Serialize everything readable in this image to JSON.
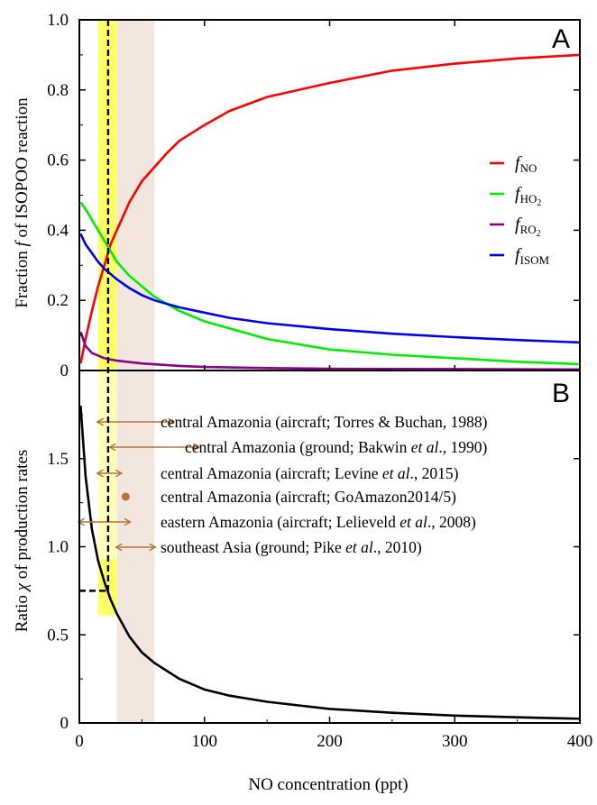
{
  "chart_data": [
    {
      "panel": "A",
      "type": "line",
      "ylabel": "Fraction f of ISOPOO reaction",
      "ylim": [
        0,
        1.0
      ],
      "xlim": [
        0,
        400
      ],
      "y_ticks": [
        "0",
        "0.2",
        "0.4",
        "0.6",
        "0.8",
        "1.0"
      ],
      "legend_position": "right",
      "series": [
        {
          "name": "NO",
          "color": "#ff0000",
          "x": [
            1,
            5,
            10,
            15,
            20,
            25,
            30,
            40,
            50,
            60,
            70,
            80,
            100,
            120,
            150,
            200,
            250,
            300,
            350,
            400
          ],
          "y": [
            0.02,
            0.09,
            0.17,
            0.24,
            0.3,
            0.36,
            0.4,
            0.48,
            0.54,
            0.58,
            0.62,
            0.655,
            0.7,
            0.74,
            0.78,
            0.82,
            0.855,
            0.875,
            0.89,
            0.9
          ]
        },
        {
          "name": "HO2",
          "color": "#00ee00",
          "x": [
            1,
            5,
            10,
            15,
            20,
            25,
            30,
            40,
            50,
            60,
            70,
            80,
            100,
            120,
            150,
            200,
            250,
            300,
            350,
            400
          ],
          "y": [
            0.48,
            0.46,
            0.43,
            0.4,
            0.37,
            0.34,
            0.31,
            0.27,
            0.24,
            0.21,
            0.19,
            0.17,
            0.14,
            0.12,
            0.09,
            0.06,
            0.045,
            0.035,
            0.025,
            0.018
          ]
        },
        {
          "name": "RO2",
          "color": "#8b008b",
          "x": [
            1,
            5,
            10,
            20,
            30,
            50,
            80,
            100,
            150,
            200,
            300,
            400
          ],
          "y": [
            0.11,
            0.07,
            0.05,
            0.035,
            0.028,
            0.02,
            0.013,
            0.01,
            0.007,
            0.005,
            0.004,
            0.003
          ]
        },
        {
          "name": "ISOM",
          "color": "#0000ee",
          "x": [
            1,
            5,
            10,
            15,
            20,
            25,
            30,
            40,
            50,
            60,
            80,
            100,
            120,
            150,
            200,
            250,
            300,
            350,
            400
          ],
          "y": [
            0.39,
            0.36,
            0.335,
            0.31,
            0.29,
            0.275,
            0.26,
            0.235,
            0.215,
            0.2,
            0.18,
            0.165,
            0.15,
            0.135,
            0.118,
            0.105,
            0.095,
            0.087,
            0.08
          ]
        }
      ],
      "legend": [
        {
          "label_f": "f",
          "label_sub": "NO",
          "subscript2": ""
        },
        {
          "label_f": "f",
          "label_sub": "HO",
          "subscript2": "2"
        },
        {
          "label_f": "f",
          "label_sub": "RO",
          "subscript2": "2"
        },
        {
          "label_f": "f",
          "label_sub": "ISOM",
          "subscript2": ""
        }
      ]
    },
    {
      "panel": "B",
      "type": "line",
      "ylabel": "Ratio χ of production rates",
      "xlabel": "NO concentration (ppt)",
      "ylim": [
        0,
        2.0
      ],
      "xlim": [
        0,
        400
      ],
      "x_ticks": [
        "0",
        "100",
        "200",
        "300",
        "400"
      ],
      "y_ticks": [
        "0",
        "0.5",
        "1.0",
        "1.5"
      ],
      "series": [
        {
          "name": "",
          "color": "#000000",
          "x": [
            1,
            5,
            10,
            15,
            20,
            25,
            30,
            40,
            50,
            60,
            80,
            100,
            120,
            150,
            200,
            250,
            300,
            350,
            400
          ],
          "y": [
            1.8,
            1.4,
            1.1,
            0.92,
            0.8,
            0.7,
            0.62,
            0.49,
            0.4,
            0.34,
            0.25,
            0.19,
            0.155,
            0.12,
            0.08,
            0.058,
            0.042,
            0.032,
            0.024
          ]
        }
      ],
      "annotations": [
        {
          "parts": [
            [
              "central Amazonia (aircraft; Torres & Buchan, 1988)",
              ""
            ]
          ],
          "range": [
            15,
            75
          ]
        },
        {
          "parts": [
            [
              "central Amazonia (ground; Bakwin ",
              ""
            ],
            [
              "et al",
              "i"
            ],
            [
              "., 1990)",
              ""
            ]
          ],
          "range": [
            25,
            95
          ]
        },
        {
          "parts": [
            [
              "central Amazonia (aircraft; Levine ",
              ""
            ],
            [
              "et al",
              "i"
            ],
            [
              "., 2015)",
              ""
            ]
          ],
          "range": [
            15,
            33
          ]
        },
        {
          "parts": [
            [
              "central Amazonia (aircraft; GoAmazon2014/5)",
              ""
            ]
          ],
          "point": 37
        },
        {
          "parts": [
            [
              "eastern Amazonia (aircraft; Lelieveld ",
              ""
            ],
            [
              "et al",
              "i"
            ],
            [
              "., 2008)",
              ""
            ]
          ],
          "range": [
            0,
            40
          ]
        },
        {
          "parts": [
            [
              "southeast Asia (ground; Pike ",
              ""
            ],
            [
              "et al",
              "i"
            ],
            [
              "., 2010)",
              ""
            ]
          ],
          "range": [
            30,
            60
          ]
        }
      ],
      "reference": {
        "x": 23,
        "y": 0.75
      }
    }
  ],
  "shading": {
    "yellow_band": [
      15,
      30
    ],
    "beige_band": [
      30,
      60
    ],
    "yellow_color": "#ffff66",
    "beige_color": "#f2e6de",
    "arrow_color": "#b5733a"
  }
}
